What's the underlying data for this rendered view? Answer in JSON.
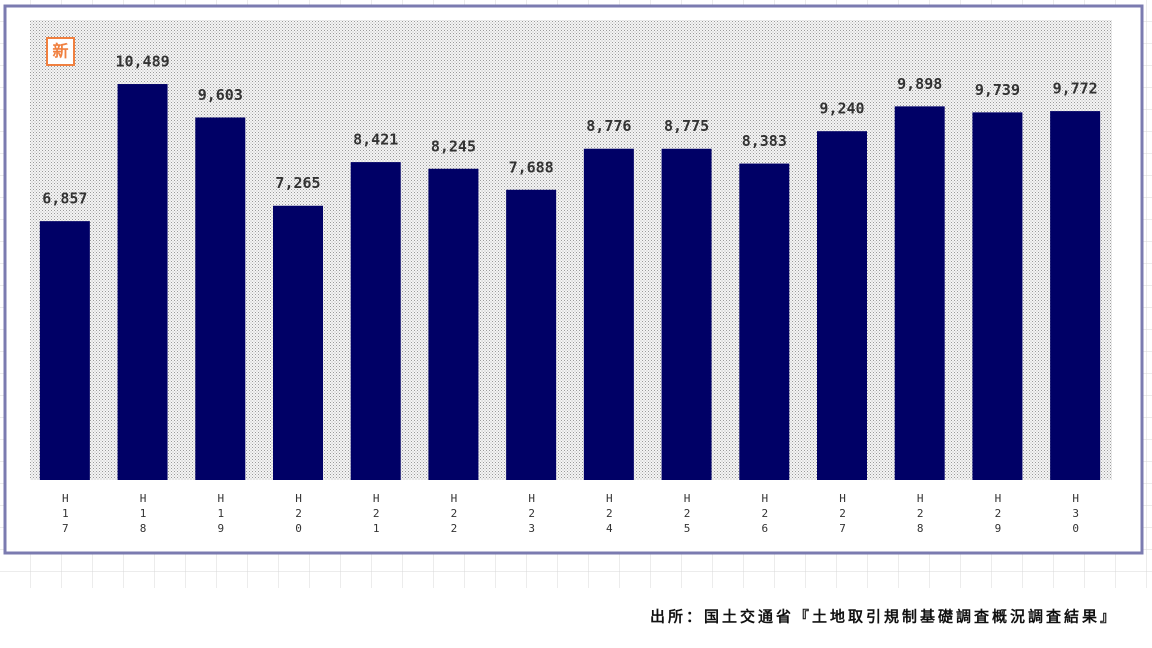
{
  "chart_data": {
    "type": "bar",
    "badge": "新",
    "categories": [
      "H17",
      "H18",
      "H19",
      "H20",
      "H21",
      "H22",
      "H23",
      "H24",
      "H25",
      "H26",
      "H27",
      "H28",
      "H29",
      "H30"
    ],
    "values": [
      6857,
      10489,
      9603,
      7265,
      8421,
      8245,
      7688,
      8776,
      8775,
      8383,
      9240,
      9898,
      9739,
      9772
    ],
    "value_labels": [
      "6,857",
      "10,489",
      "9,603",
      "7,265",
      "8,421",
      "8,245",
      "7,688",
      "8,776",
      "8,775",
      "8,383",
      "9,240",
      "9,898",
      "9,739",
      "9,772"
    ],
    "color": "#000066",
    "ylim": [
      0,
      12000
    ],
    "source": "出所：国土交通省『土地取引規制基礎調査概況調査結果』"
  }
}
